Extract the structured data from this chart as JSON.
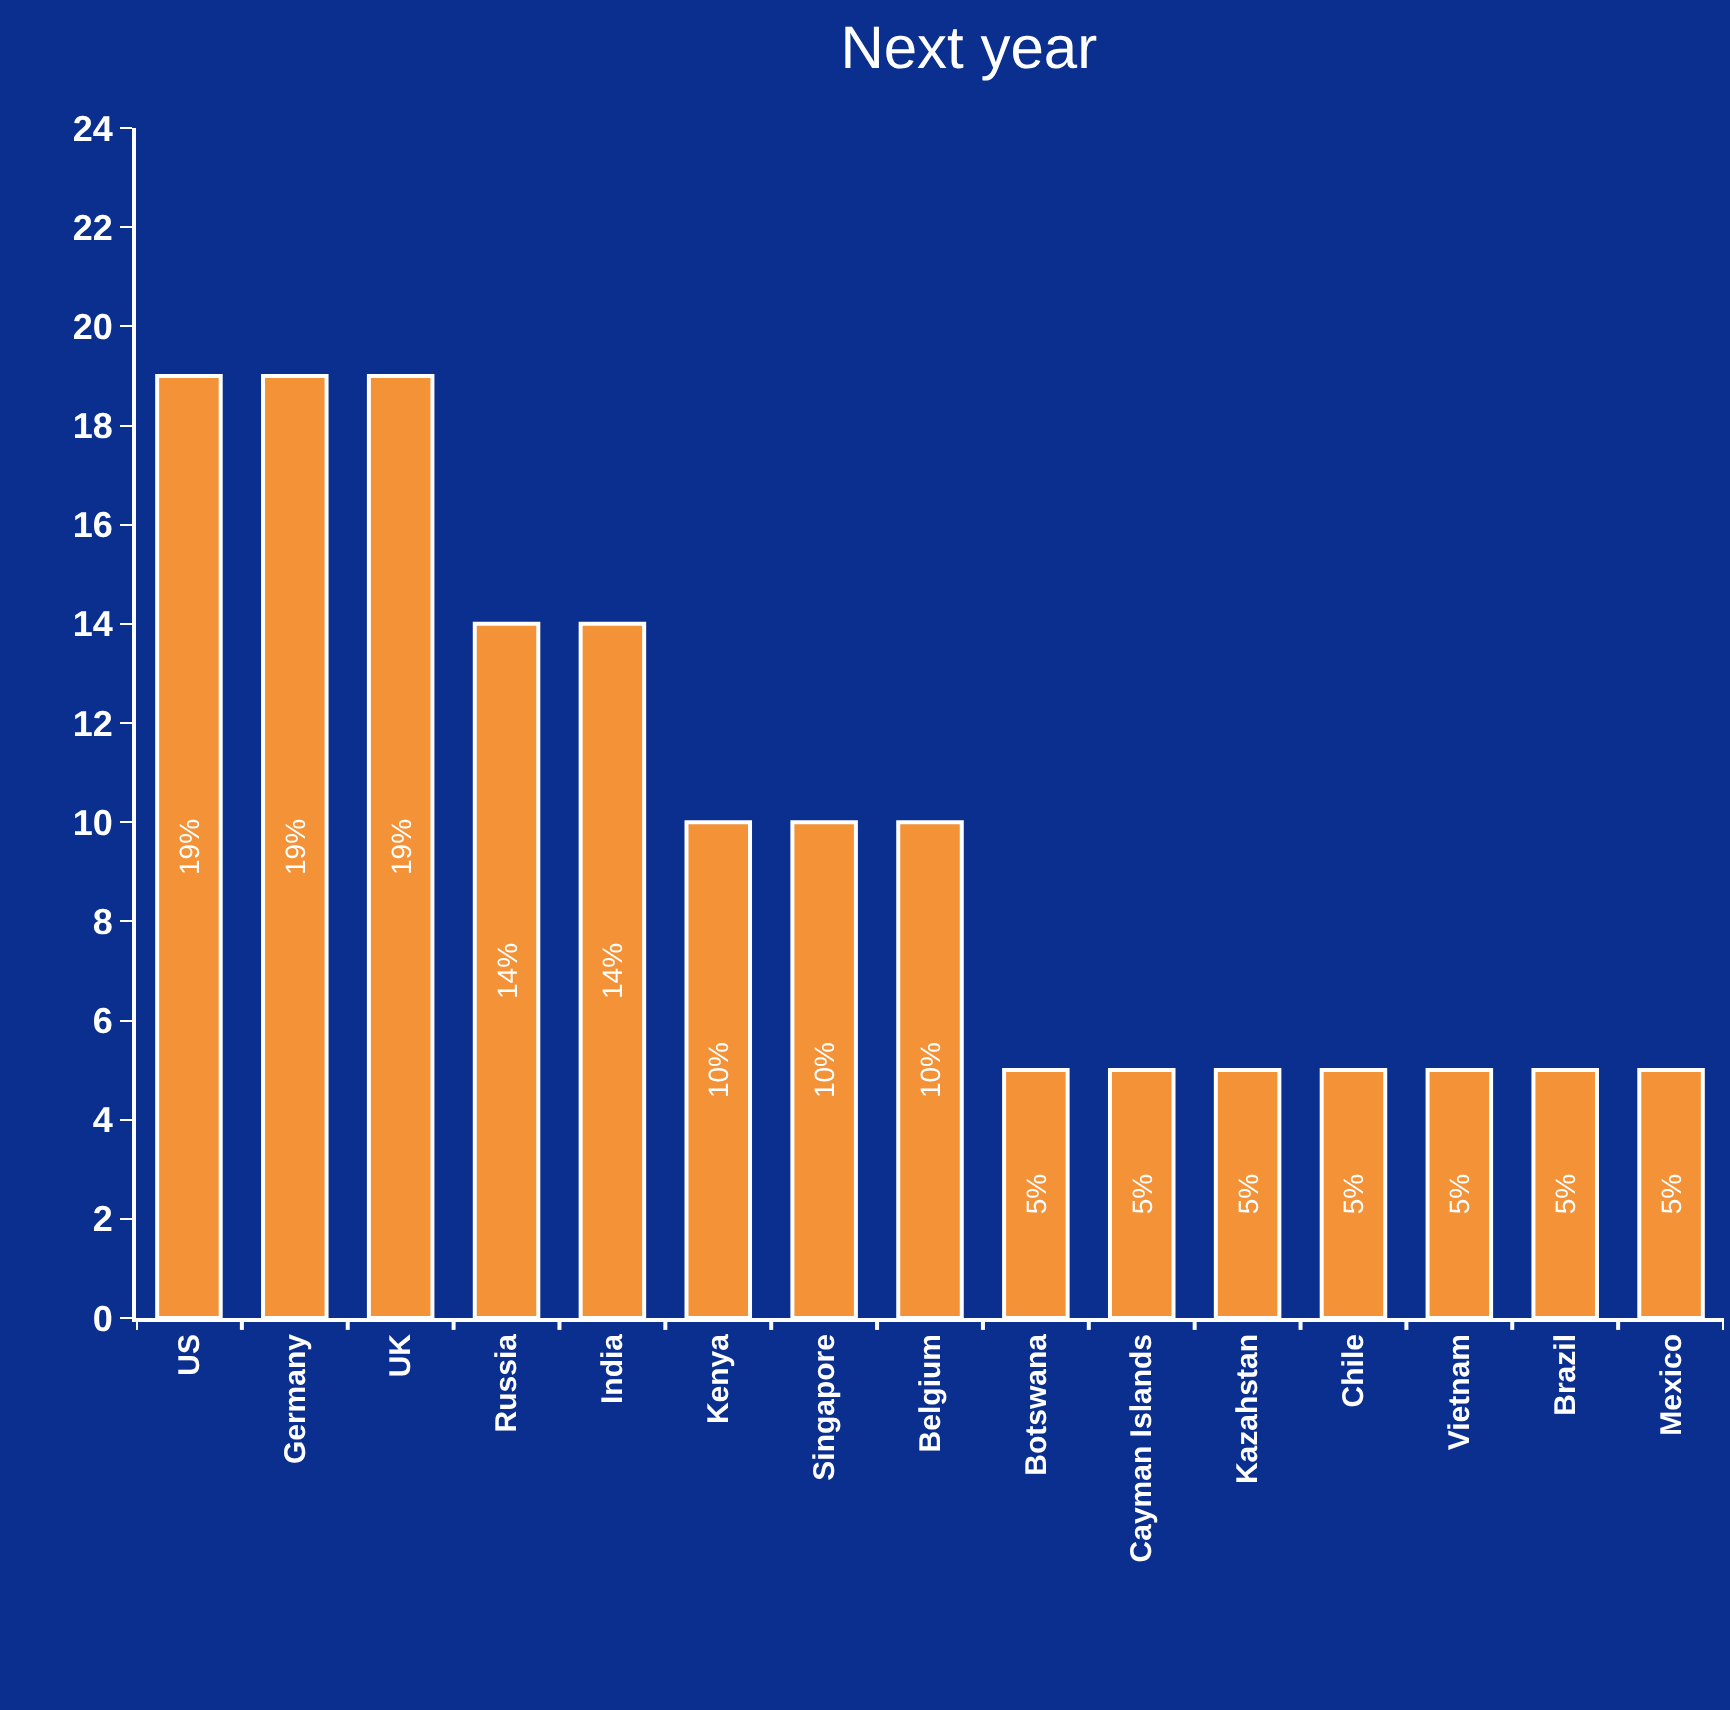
{
  "chart_data": {
    "type": "bar",
    "title": "Next year",
    "categories": [
      "US",
      "Germany",
      "UK",
      "Russia",
      "India",
      "Kenya",
      "Singapore",
      "Belgium",
      "Botswana",
      "Cayman Islands",
      "Kazahstan",
      "Chile",
      "Vietnam",
      "Brazil",
      "Mexico"
    ],
    "values": [
      19,
      19,
      19,
      14,
      14,
      10,
      10,
      10,
      5,
      5,
      5,
      5,
      5,
      5,
      5
    ],
    "value_labels": [
      "19%",
      "19%",
      "19%",
      "14%",
      "14%",
      "10%",
      "10%",
      "10%",
      "5%",
      "5%",
      "5%",
      "5%",
      "5%",
      "5%",
      "5%"
    ],
    "color": "#f39237",
    "ylim": [
      0,
      24
    ],
    "yticks": [
      0,
      2,
      4,
      6,
      8,
      10,
      12,
      14,
      16,
      18,
      20,
      22,
      24
    ],
    "grid": false
  }
}
